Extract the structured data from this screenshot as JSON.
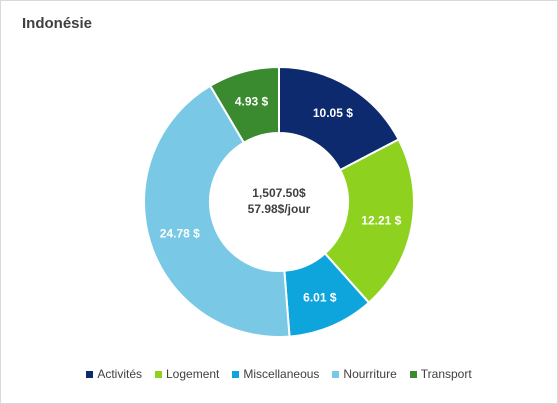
{
  "chart_data": {
    "type": "pie",
    "title": "Indonésie",
    "center_total": "1,507.50$",
    "center_per_day": "57.98$/jour",
    "slices": [
      {
        "name": "Activités",
        "value": 10.05,
        "label": "10.05  $",
        "color": "#0d2a6e"
      },
      {
        "name": "Logement",
        "value": 12.21,
        "label": "12.21  $",
        "color": "#8fd11f"
      },
      {
        "name": "Miscellaneous",
        "value": 6.01,
        "label": "6.01  $",
        "color": "#0ea5dd"
      },
      {
        "name": "Nourriture",
        "value": 24.78,
        "label": "24.78  $",
        "color": "#78c8e6"
      },
      {
        "name": "Transport",
        "value": 4.93,
        "label": "4.93  $",
        "color": "#3a8a2f"
      }
    ],
    "legend_position": "bottom"
  }
}
